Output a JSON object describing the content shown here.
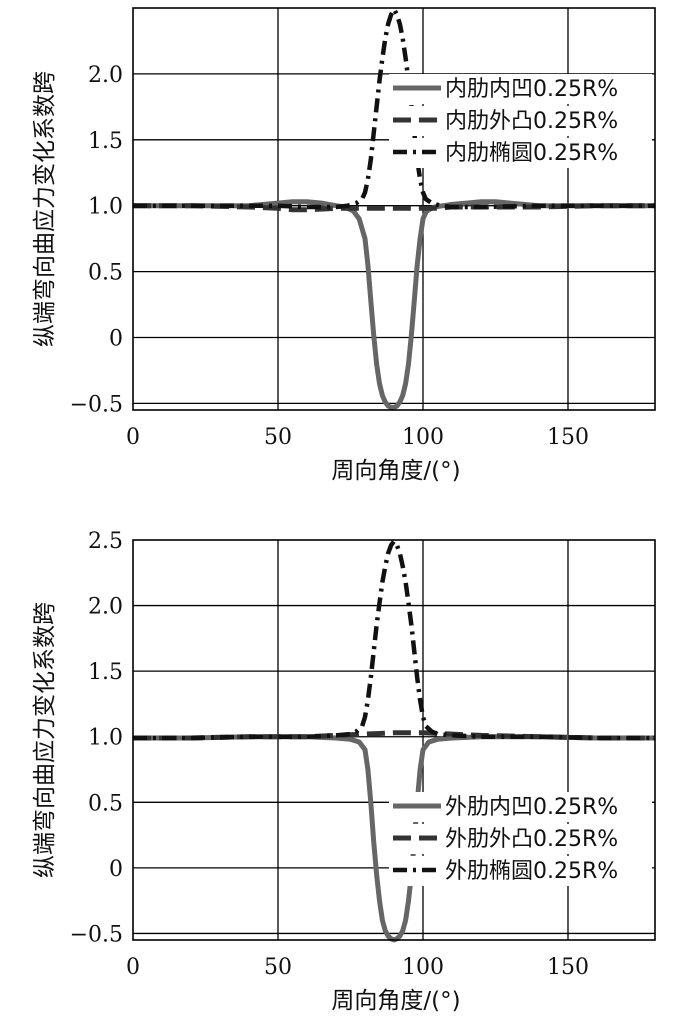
{
  "chart_data": [
    {
      "type": "line",
      "xlabel": "周向角度/(°)",
      "ylabel": "纵端弯向曲应力变化系数跨",
      "xlim": [
        0,
        180
      ],
      "ylim": [
        -0.55,
        2.5
      ],
      "xticks": [
        0,
        50,
        100,
        150
      ],
      "yticks": [
        -0.5,
        0,
        0.5,
        1.0,
        1.5,
        2.0
      ],
      "ytick_labels": [
        "−0.5",
        "0",
        "0.5",
        "1.0",
        "1.5",
        "2.0"
      ],
      "grid": true,
      "legend_position": "top-right",
      "series": [
        {
          "name": "内肋内凹0.25R%",
          "style": "solid",
          "color": "#666666",
          "x": [
            0,
            20,
            40,
            50,
            55,
            60,
            65,
            70,
            73,
            76,
            78,
            80,
            81,
            82,
            83,
            84,
            85,
            86,
            87,
            88,
            89,
            90,
            91,
            92,
            93,
            94,
            95,
            96,
            97,
            98,
            99,
            100,
            101,
            102,
            104,
            107,
            110,
            115,
            120,
            125,
            130,
            140,
            160,
            180
          ],
          "y": [
            1.0,
            1.0,
            1.0,
            1.02,
            1.03,
            1.03,
            1.02,
            1.0,
            0.99,
            0.96,
            0.9,
            0.75,
            0.55,
            0.28,
            0.02,
            -0.2,
            -0.35,
            -0.44,
            -0.49,
            -0.52,
            -0.53,
            -0.53,
            -0.52,
            -0.49,
            -0.44,
            -0.35,
            -0.2,
            0.02,
            0.28,
            0.55,
            0.75,
            0.9,
            0.95,
            0.97,
            0.99,
            1.0,
            1.01,
            1.02,
            1.03,
            1.03,
            1.02,
            1.0,
            1.0,
            1.0
          ]
        },
        {
          "name": "内肋外凸0.25R%",
          "style": "dashed",
          "color": "#333333",
          "x": [
            0,
            20,
            40,
            50,
            55,
            60,
            70,
            75,
            80,
            100,
            105,
            110,
            120,
            130,
            140,
            160,
            180
          ],
          "y": [
            1.0,
            1.0,
            0.99,
            0.98,
            0.97,
            0.97,
            0.98,
            0.98,
            0.98,
            0.98,
            0.98,
            0.99,
            0.99,
            0.99,
            0.99,
            1.0,
            1.0
          ]
        },
        {
          "name": "内肋椭圆0.25R%",
          "style": "dashdot",
          "color": "#111111",
          "x": [
            0,
            20,
            40,
            50,
            60,
            70,
            74,
            77,
            79,
            80,
            81,
            82,
            83,
            84,
            85,
            86,
            87,
            88,
            89,
            90,
            91,
            92,
            93,
            94,
            95,
            96,
            97,
            98,
            99,
            100,
            101,
            103,
            106,
            110,
            120,
            140,
            160,
            180
          ],
          "y": [
            1.0,
            1.0,
            1.0,
            1.0,
            0.99,
            0.99,
            1.0,
            1.02,
            1.05,
            1.1,
            1.2,
            1.35,
            1.55,
            1.75,
            1.95,
            2.12,
            2.27,
            2.38,
            2.45,
            2.49,
            2.45,
            2.38,
            2.27,
            2.12,
            1.95,
            1.75,
            1.55,
            1.35,
            1.2,
            1.1,
            1.05,
            1.02,
            1.0,
            0.99,
            0.99,
            1.0,
            1.0,
            1.0
          ]
        }
      ]
    },
    {
      "type": "line",
      "xlabel": "周向角度/(°)",
      "ylabel": "纵端弯向曲应力变化系数跨",
      "xlim": [
        0,
        180
      ],
      "ylim": [
        -0.55,
        2.5
      ],
      "xticks": [
        0,
        50,
        100,
        150
      ],
      "yticks": [
        -0.5,
        0,
        0.5,
        1.0,
        1.5,
        2.0,
        2.5
      ],
      "ytick_labels": [
        "−0.5",
        "0",
        "0.5",
        "1.0",
        "1.5",
        "2.0",
        "2.5"
      ],
      "grid": true,
      "legend_position": "bottom-right",
      "series": [
        {
          "name": "外肋内凹0.25R%",
          "style": "solid",
          "color": "#666666",
          "x": [
            0,
            20,
            40,
            50,
            60,
            70,
            75,
            78,
            80,
            81,
            82,
            83,
            84,
            85,
            86,
            87,
            88,
            89,
            90,
            91,
            92,
            93,
            94,
            95,
            96,
            97,
            98,
            99,
            100,
            102,
            105,
            110,
            120,
            140,
            160,
            180
          ],
          "y": [
            0.99,
            0.99,
            1.0,
            1.0,
            1.0,
            0.99,
            0.98,
            0.96,
            0.9,
            0.75,
            0.5,
            0.2,
            -0.05,
            -0.25,
            -0.4,
            -0.48,
            -0.52,
            -0.54,
            -0.55,
            -0.54,
            -0.52,
            -0.48,
            -0.4,
            -0.25,
            -0.05,
            0.2,
            0.5,
            0.75,
            0.9,
            0.96,
            0.98,
            0.99,
            1.0,
            1.0,
            0.99,
            0.99
          ]
        },
        {
          "name": "外肋外凸0.25R%",
          "style": "dashed",
          "color": "#333333",
          "x": [
            0,
            20,
            40,
            60,
            70,
            80,
            90,
            100,
            110,
            120,
            140,
            160,
            180
          ],
          "y": [
            0.99,
            0.99,
            1.0,
            1.0,
            1.01,
            1.02,
            1.03,
            1.03,
            1.02,
            1.01,
            1.0,
            0.99,
            0.99
          ]
        },
        {
          "name": "外肋椭圆0.25R%",
          "style": "dashdot",
          "color": "#111111",
          "x": [
            0,
            20,
            40,
            60,
            70,
            75,
            77,
            79,
            80,
            81,
            82,
            83,
            84,
            85,
            86,
            87,
            88,
            89,
            90,
            91,
            92,
            93,
            94,
            95,
            96,
            97,
            98,
            99,
            100,
            101,
            103,
            105,
            110,
            120,
            140,
            160,
            180
          ],
          "y": [
            0.99,
            0.99,
            1.0,
            1.0,
            1.01,
            1.02,
            1.04,
            1.08,
            1.15,
            1.28,
            1.45,
            1.65,
            1.85,
            2.02,
            2.18,
            2.3,
            2.4,
            2.46,
            2.49,
            2.46,
            2.4,
            2.3,
            2.18,
            2.02,
            1.85,
            1.65,
            1.45,
            1.28,
            1.15,
            1.08,
            1.04,
            1.02,
            1.01,
            1.0,
            1.0,
            0.99,
            0.99
          ]
        }
      ]
    }
  ]
}
